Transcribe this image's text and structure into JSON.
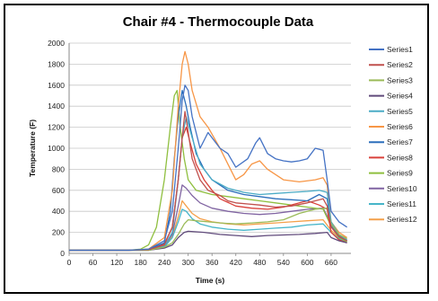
{
  "chart_data": {
    "type": "line",
    "title": "Chair #4 - Thermocouple Data",
    "xlabel": "Time (s)",
    "ylabel": "Temperature (F)",
    "xlim": [
      0,
      710
    ],
    "ylim": [
      0,
      2000
    ],
    "xticks": [
      0,
      60,
      120,
      180,
      240,
      300,
      360,
      420,
      480,
      540,
      600,
      660
    ],
    "yticks": [
      0,
      200,
      400,
      600,
      800,
      1000,
      1200,
      1400,
      1600,
      1800,
      2000
    ],
    "grid": "horizontal",
    "legend_position": "right",
    "series": [
      {
        "name": "Series1",
        "color": "#4472C4",
        "x": [
          0,
          150,
          200,
          240,
          260,
          275,
          285,
          292,
          300,
          310,
          330,
          350,
          380,
          400,
          420,
          450,
          470,
          480,
          500,
          520,
          540,
          560,
          580,
          600,
          620,
          640,
          650,
          660,
          680,
          700
        ],
        "values": [
          30,
          30,
          40,
          120,
          400,
          1000,
          1450,
          1600,
          1550,
          1300,
          1000,
          1150,
          1000,
          950,
          820,
          900,
          1050,
          1100,
          950,
          900,
          880,
          870,
          880,
          900,
          1000,
          980,
          700,
          400,
          300,
          250
        ]
      },
      {
        "name": "Series2",
        "color": "#C0504D",
        "x": [
          0,
          150,
          200,
          240,
          260,
          275,
          285,
          292,
          300,
          310,
          330,
          350,
          380,
          400,
          420,
          450,
          480,
          520,
          560,
          600,
          620,
          640,
          650,
          660,
          680,
          700
        ],
        "values": [
          30,
          30,
          35,
          80,
          250,
          700,
          1100,
          1350,
          1150,
          900,
          700,
          600,
          550,
          500,
          480,
          470,
          460,
          440,
          450,
          480,
          500,
          520,
          450,
          250,
          160,
          120
        ]
      },
      {
        "name": "Series3",
        "color": "#9BBB59",
        "x": [
          0,
          150,
          200,
          240,
          260,
          275,
          290,
          300,
          320,
          350,
          380,
          420,
          460,
          500,
          540,
          580,
          620,
          650,
          660,
          680,
          700
        ],
        "values": [
          30,
          30,
          30,
          60,
          100,
          180,
          280,
          320,
          310,
          300,
          290,
          280,
          290,
          300,
          320,
          380,
          420,
          430,
          280,
          180,
          140
        ]
      },
      {
        "name": "Series4",
        "color": "#604A7B",
        "x": [
          0,
          150,
          200,
          240,
          260,
          275,
          290,
          300,
          340,
          380,
          420,
          460,
          500,
          540,
          580,
          620,
          650,
          660,
          680,
          700
        ],
        "values": [
          30,
          30,
          30,
          50,
          80,
          150,
          200,
          210,
          200,
          180,
          170,
          160,
          170,
          175,
          180,
          190,
          200,
          150,
          120,
          100
        ]
      },
      {
        "name": "Series5",
        "color": "#4BACC6",
        "x": [
          0,
          150,
          200,
          240,
          260,
          275,
          285,
          295,
          310,
          330,
          360,
          400,
          440,
          480,
          520,
          560,
          600,
          630,
          650,
          660,
          680,
          700
        ],
        "values": [
          30,
          30,
          35,
          70,
          200,
          700,
          1100,
          1300,
          1100,
          850,
          700,
          620,
          580,
          560,
          570,
          580,
          590,
          600,
          580,
          300,
          180,
          130
        ]
      },
      {
        "name": "Series6",
        "color": "#F79646",
        "x": [
          0,
          150,
          200,
          240,
          260,
          275,
          285,
          292,
          300,
          310,
          330,
          350,
          380,
          400,
          420,
          440,
          460,
          480,
          500,
          540,
          580,
          620,
          640,
          650,
          660,
          680,
          700
        ],
        "values": [
          30,
          30,
          40,
          150,
          600,
          1400,
          1800,
          1920,
          1800,
          1550,
          1300,
          1200,
          1000,
          850,
          700,
          750,
          850,
          880,
          800,
          700,
          680,
          700,
          720,
          650,
          300,
          200,
          150
        ]
      },
      {
        "name": "Series7",
        "color": "#2C6FBB",
        "x": [
          0,
          150,
          200,
          240,
          255,
          265,
          275,
          285,
          295,
          305,
          320,
          340,
          360,
          400,
          440,
          480,
          520,
          560,
          600,
          630,
          650,
          660,
          680,
          700
        ],
        "values": [
          30,
          30,
          40,
          100,
          400,
          900,
          1300,
          1550,
          1400,
          1200,
          950,
          800,
          700,
          600,
          560,
          540,
          520,
          510,
          500,
          560,
          520,
          260,
          160,
          120
        ]
      },
      {
        "name": "Series8",
        "color": "#D9413A",
        "x": [
          0,
          150,
          200,
          240,
          260,
          275,
          285,
          295,
          305,
          320,
          340,
          360,
          380,
          420,
          460,
          500,
          540,
          580,
          600,
          630,
          650,
          660,
          680,
          700
        ],
        "values": [
          30,
          30,
          35,
          90,
          250,
          700,
          1100,
          1200,
          1050,
          850,
          700,
          600,
          520,
          450,
          430,
          420,
          440,
          480,
          500,
          460,
          420,
          200,
          130,
          100
        ]
      },
      {
        "name": "Series9",
        "color": "#8FBF3F",
        "x": [
          0,
          150,
          180,
          200,
          220,
          240,
          255,
          265,
          272,
          280,
          290,
          300,
          320,
          360,
          400,
          440,
          480,
          520,
          560,
          600,
          640,
          660,
          680,
          700
        ],
        "values": [
          30,
          30,
          40,
          80,
          250,
          700,
          1200,
          1500,
          1550,
          1200,
          900,
          700,
          600,
          560,
          540,
          520,
          500,
          480,
          460,
          440,
          420,
          260,
          150,
          110
        ]
      },
      {
        "name": "Series10",
        "color": "#8064A2",
        "x": [
          0,
          150,
          200,
          240,
          260,
          275,
          285,
          295,
          310,
          330,
          360,
          400,
          440,
          480,
          520,
          560,
          600,
          640,
          660,
          680,
          700
        ],
        "values": [
          30,
          30,
          35,
          70,
          180,
          450,
          650,
          620,
          550,
          480,
          430,
          400,
          380,
          370,
          380,
          400,
          420,
          430,
          280,
          170,
          120
        ]
      },
      {
        "name": "Series11",
        "color": "#46B5C9",
        "x": [
          0,
          150,
          200,
          240,
          260,
          275,
          285,
          295,
          310,
          330,
          360,
          400,
          440,
          480,
          520,
          560,
          600,
          640,
          660,
          680,
          700
        ],
        "values": [
          30,
          30,
          30,
          60,
          150,
          300,
          420,
          400,
          330,
          280,
          250,
          230,
          220,
          230,
          240,
          250,
          270,
          280,
          200,
          140,
          100
        ]
      },
      {
        "name": "Series12",
        "color": "#F4A04A",
        "x": [
          0,
          150,
          200,
          240,
          260,
          275,
          285,
          295,
          310,
          330,
          360,
          400,
          440,
          480,
          520,
          560,
          600,
          640,
          660,
          680,
          700
        ],
        "values": [
          30,
          30,
          30,
          60,
          160,
          350,
          500,
          450,
          380,
          330,
          300,
          280,
          270,
          280,
          290,
          300,
          310,
          320,
          220,
          150,
          110
        ]
      }
    ]
  }
}
